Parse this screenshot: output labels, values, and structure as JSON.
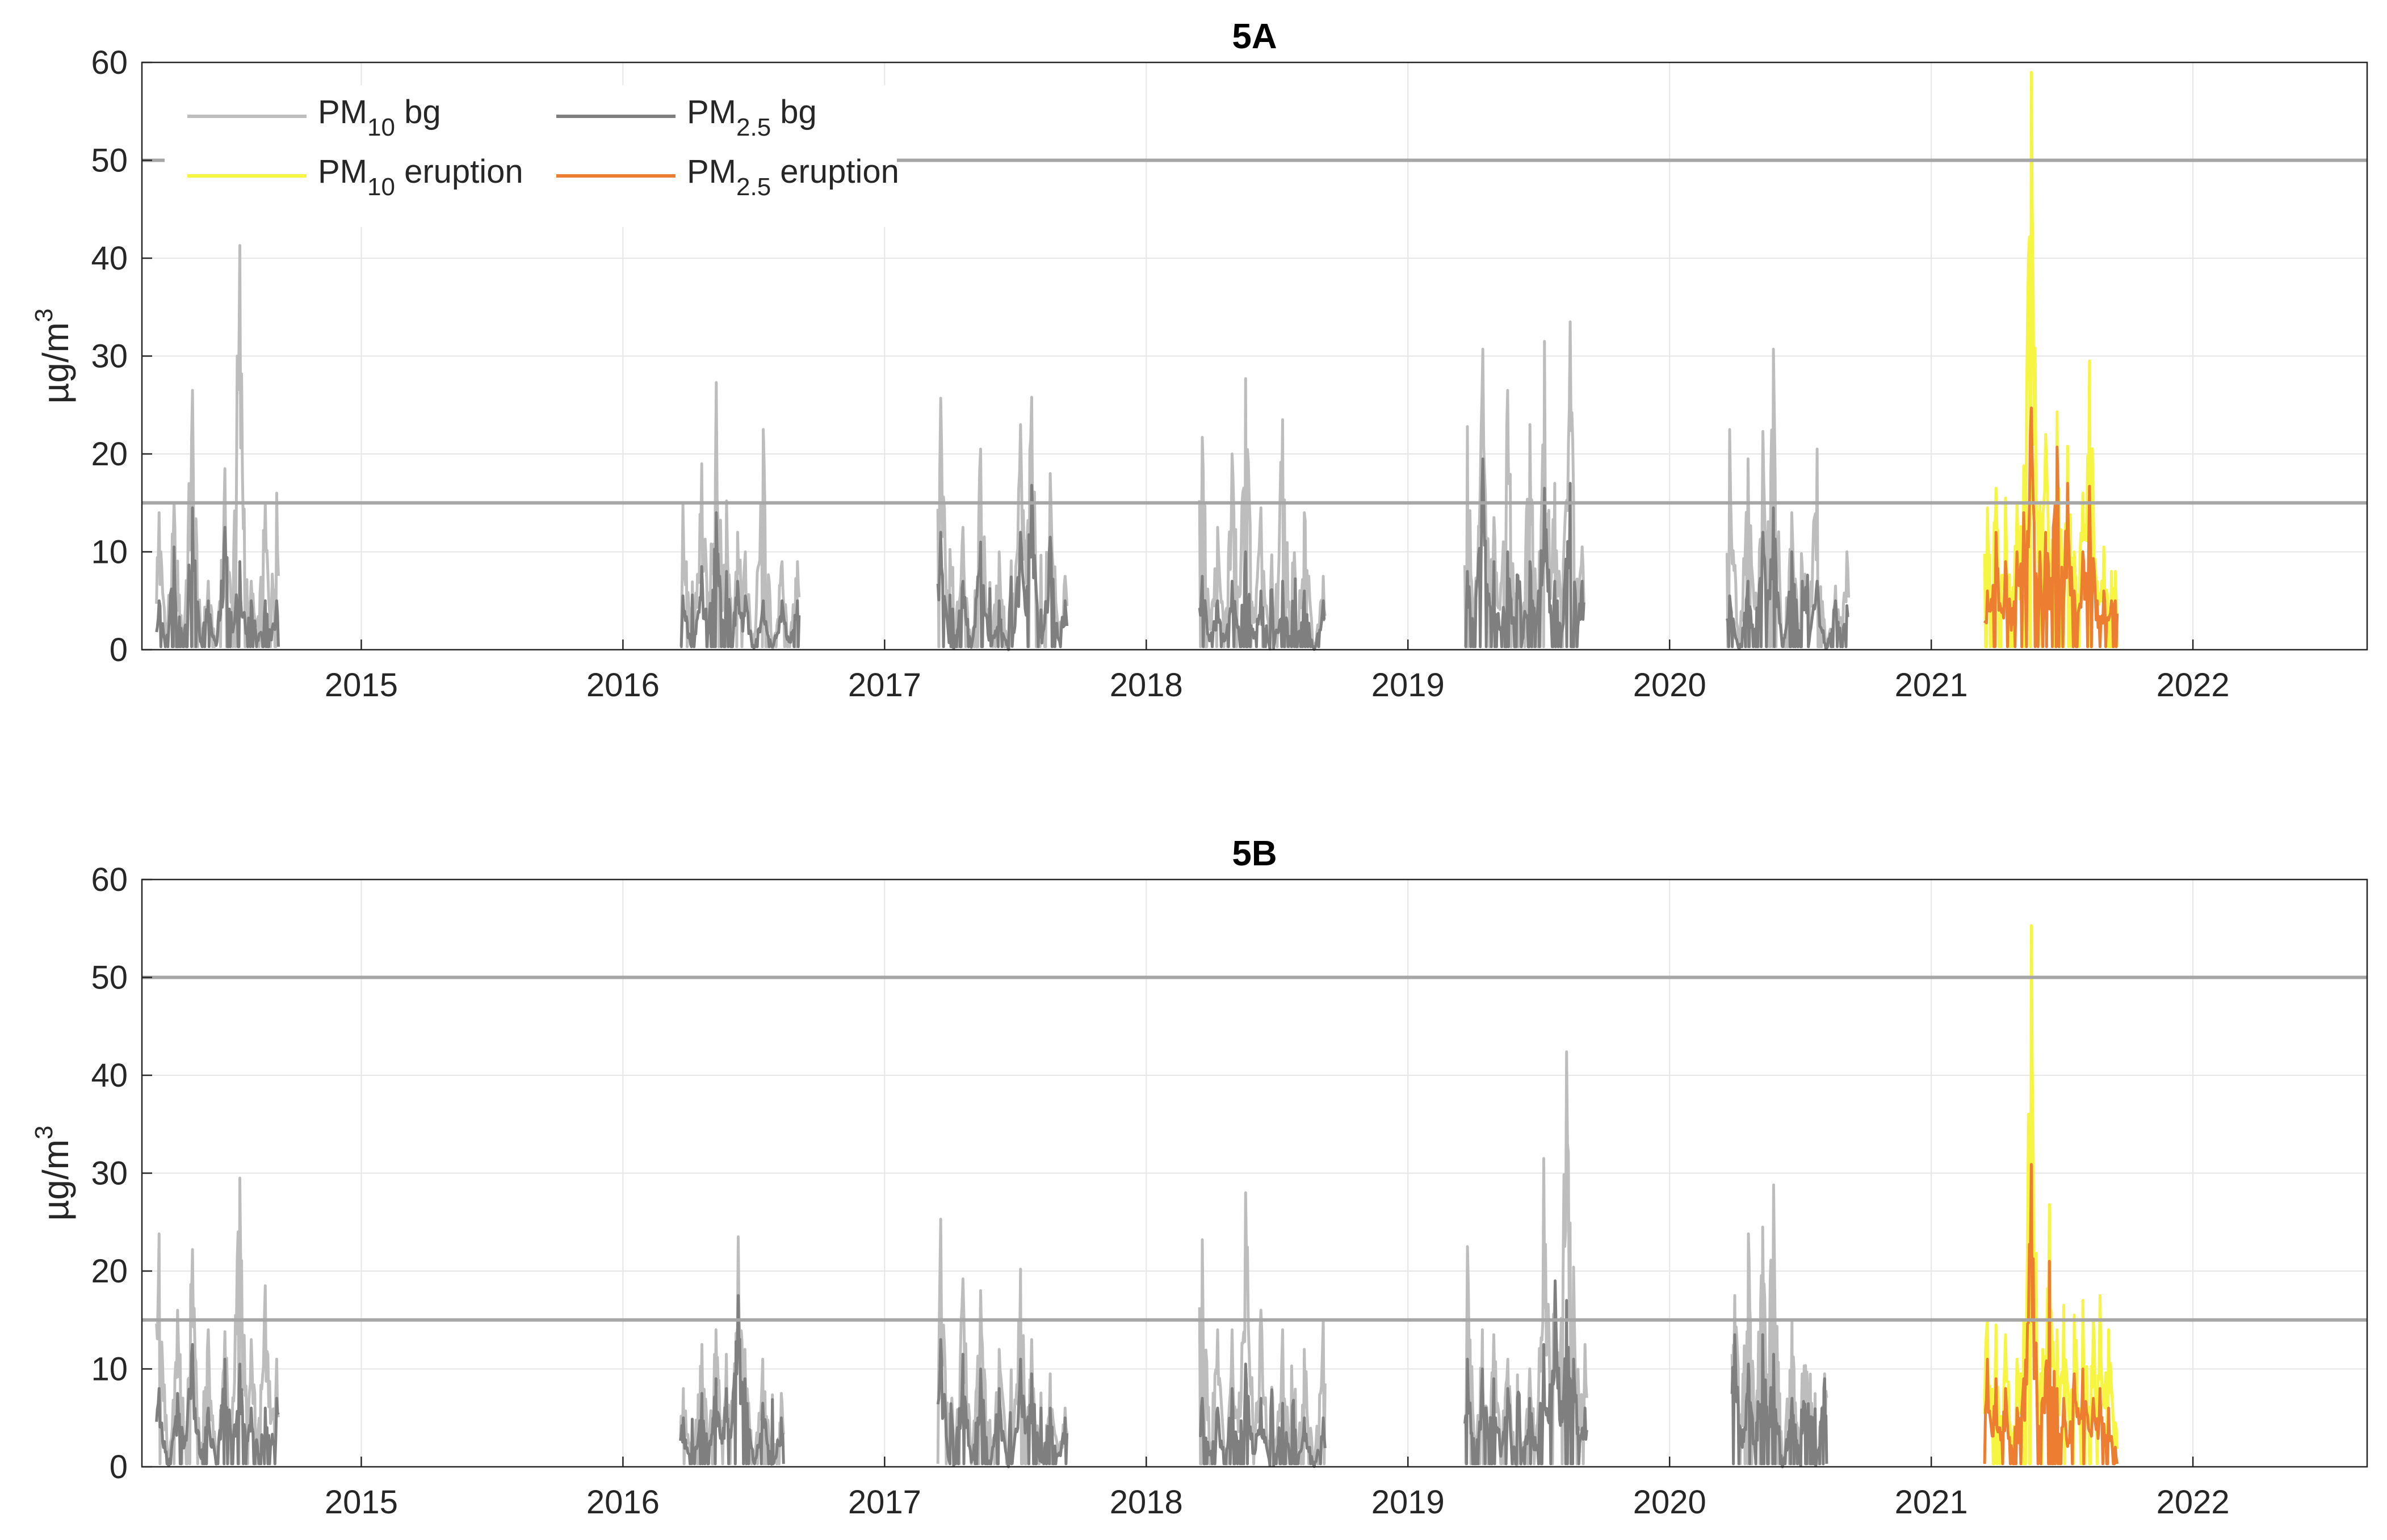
{
  "chart_data": [
    {
      "type": "line",
      "title": "5A",
      "ylabel_parts": {
        "prefix": "µg/m",
        "sup": "3"
      },
      "ylim": [
        0,
        60
      ],
      "yticks": [
        0,
        10,
        20,
        30,
        40,
        50,
        60
      ],
      "xlim": [
        "2014-03-01",
        "2022-09-01"
      ],
      "xticks": [
        "2015",
        "2016",
        "2017",
        "2018",
        "2019",
        "2020",
        "2021",
        "2022"
      ],
      "grid": true,
      "reference_lines": [
        50,
        15
      ],
      "legend": {
        "placement": "top-left",
        "entries": [
          {
            "base": "PM",
            "sub": "10",
            "rest": " bg",
            "color": "#bdbdbd"
          },
          {
            "base": "PM",
            "sub": "2.5",
            "rest": " bg",
            "color": "#7f7f7f"
          },
          {
            "base": "PM",
            "sub": "10",
            "rest": " eruption",
            "color": "#f5f542"
          },
          {
            "base": "PM",
            "sub": "2.5",
            "rest": " eruption",
            "color": "#ed7d31"
          }
        ]
      },
      "series": [
        {
          "name": "PM10 bg",
          "color": "#bdbdbd",
          "x": [
            "2014-03-25",
            "2014-04-15",
            "2014-05-10",
            "2014-06-01",
            "2014-06-25",
            "2014-07-15",
            "2014-08-01",
            "2014-08-20",
            "2014-09-05",
            "2016-03-25",
            "2016-04-20",
            "2016-05-10",
            "2016-05-25",
            "2016-06-10",
            "2016-06-20",
            "2016-07-15",
            "2016-08-10",
            "2016-09-01",
            "2017-03-20",
            "2017-04-20",
            "2017-05-15",
            "2017-06-10",
            "2017-07-10",
            "2017-07-25",
            "2017-08-20",
            "2017-09-10",
            "2018-03-20",
            "2018-04-10",
            "2018-05-01",
            "2018-05-20",
            "2018-06-10",
            "2018-07-10",
            "2018-08-10",
            "2018-09-05",
            "2019-03-25",
            "2019-04-15",
            "2019-05-01",
            "2019-05-20",
            "2019-06-20",
            "2019-07-10",
            "2019-07-25",
            "2019-08-15",
            "2019-09-01",
            "2020-03-25",
            "2020-04-20",
            "2020-05-10",
            "2020-05-25",
            "2020-06-20",
            "2020-07-25",
            "2020-08-20",
            "2020-09-05"
          ],
          "y": [
            14,
            15,
            26.5,
            7,
            18.5,
            41.3,
            7,
            15,
            16,
            14.8,
            19,
            27.3,
            15.2,
            12,
            10,
            22.5,
            9,
            9,
            25.7,
            12.5,
            20.5,
            10,
            23,
            25.8,
            18,
            7.5,
            21.7,
            12.5,
            20,
            27.7,
            14.5,
            23.5,
            14,
            7.5,
            22.8,
            30.7,
            13.5,
            26.5,
            23,
            31.5,
            17,
            33.5,
            10.5,
            22.5,
            19.5,
            22.3,
            30.7,
            14,
            20.5,
            6.5,
            10
          ]
        },
        {
          "name": "PM2.5 bg",
          "color": "#7f7f7f",
          "x": [
            "2014-03-25",
            "2014-04-15",
            "2014-05-10",
            "2014-06-01",
            "2014-06-25",
            "2014-07-15",
            "2014-08-01",
            "2014-08-20",
            "2014-09-05",
            "2016-03-25",
            "2016-04-20",
            "2016-05-10",
            "2016-05-25",
            "2016-06-10",
            "2016-06-20",
            "2016-07-15",
            "2016-08-10",
            "2016-09-01",
            "2017-03-20",
            "2017-04-20",
            "2017-05-15",
            "2017-06-10",
            "2017-07-10",
            "2017-07-25",
            "2017-08-20",
            "2017-09-10",
            "2018-03-20",
            "2018-04-10",
            "2018-05-01",
            "2018-05-20",
            "2018-06-10",
            "2018-07-10",
            "2018-08-10",
            "2018-09-05",
            "2019-03-25",
            "2019-04-15",
            "2019-05-01",
            "2019-05-20",
            "2019-06-20",
            "2019-07-10",
            "2019-07-25",
            "2019-08-15",
            "2019-09-01",
            "2020-03-25",
            "2020-04-20",
            "2020-05-10",
            "2020-05-25",
            "2020-06-20",
            "2020-07-25",
            "2020-08-20",
            "2020-09-05"
          ],
          "y": [
            5,
            10.5,
            14.5,
            5,
            12.5,
            9,
            5,
            5,
            5,
            5.5,
            8.5,
            14,
            8,
            7,
            5.5,
            5,
            5,
            5,
            12,
            7,
            11,
            5,
            12,
            16.8,
            11.5,
            5,
            7.5,
            5,
            7,
            10,
            6,
            7,
            6,
            5,
            8,
            19.5,
            9,
            10,
            9,
            16.5,
            7,
            17,
            7,
            5.5,
            7,
            12,
            14.5,
            10,
            7,
            5,
            4.5
          ]
        },
        {
          "name": "PM10 eruption",
          "color": "#f5f542",
          "x": [
            "2021-03-20",
            "2021-04-01",
            "2021-04-15",
            "2021-05-01",
            "2021-05-10",
            "2021-05-20",
            "2021-05-25",
            "2021-06-01",
            "2021-06-10",
            "2021-06-25",
            "2021-07-10",
            "2021-07-20",
            "2021-08-01",
            "2021-08-10",
            "2021-08-20",
            "2021-08-30",
            "2021-09-10",
            "2021-09-15"
          ],
          "y": [
            14.5,
            16.5,
            15.5,
            15,
            18.8,
            59,
            21,
            15,
            22,
            24.3,
            20.8,
            10,
            16,
            29.5,
            7,
            10.5,
            8,
            8
          ]
        },
        {
          "name": "PM2.5 eruption",
          "color": "#ed7d31",
          "x": [
            "2021-03-20",
            "2021-04-01",
            "2021-04-15",
            "2021-05-01",
            "2021-05-10",
            "2021-05-20",
            "2021-05-25",
            "2021-06-01",
            "2021-06-10",
            "2021-06-25",
            "2021-07-10",
            "2021-07-20",
            "2021-08-01",
            "2021-08-10",
            "2021-08-20",
            "2021-08-30",
            "2021-09-10",
            "2021-09-15"
          ],
          "y": [
            6,
            12,
            9,
            10,
            14,
            24.7,
            13,
            10,
            12,
            20.7,
            17,
            6,
            10,
            16.7,
            5,
            6,
            5,
            5
          ]
        }
      ]
    },
    {
      "type": "line",
      "title": "5B",
      "ylabel_parts": {
        "prefix": "µg/m",
        "sup": "3"
      },
      "ylim": [
        0,
        60
      ],
      "yticks": [
        0,
        10,
        20,
        30,
        40,
        50,
        60
      ],
      "xlim": [
        "2014-03-01",
        "2022-09-01"
      ],
      "xticks": [
        "2015",
        "2016",
        "2017",
        "2018",
        "2019",
        "2020",
        "2021",
        "2022"
      ],
      "grid": true,
      "reference_lines": [
        50,
        15
      ],
      "series": [
        {
          "name": "PM10 bg",
          "color": "#bdbdbd",
          "x": [
            "2014-03-25",
            "2014-04-20",
            "2014-05-10",
            "2014-06-01",
            "2014-06-25",
            "2014-07-15",
            "2014-08-01",
            "2014-08-20",
            "2014-09-05",
            "2016-03-25",
            "2016-04-20",
            "2016-05-10",
            "2016-05-25",
            "2016-06-10",
            "2016-06-20",
            "2016-07-15",
            "2016-08-10",
            "2017-03-20",
            "2017-04-20",
            "2017-05-15",
            "2017-06-10",
            "2017-07-10",
            "2017-07-25",
            "2017-08-20",
            "2017-09-10",
            "2018-03-20",
            "2018-04-10",
            "2018-05-01",
            "2018-05-20",
            "2018-06-10",
            "2018-07-10",
            "2018-08-10",
            "2018-09-05",
            "2019-03-25",
            "2019-04-15",
            "2019-05-01",
            "2019-05-20",
            "2019-06-20",
            "2019-07-10",
            "2019-07-25",
            "2019-08-10",
            "2019-08-20",
            "2019-09-05",
            "2020-04-01",
            "2020-04-20",
            "2020-05-10",
            "2020-05-25",
            "2020-06-20",
            "2020-08-05"
          ],
          "y": [
            23.8,
            16,
            22.2,
            14,
            13.8,
            29.5,
            13,
            18.5,
            11,
            8,
            12.5,
            14,
            11.5,
            23.5,
            12,
            11,
            7.5,
            25.3,
            19.2,
            18,
            12,
            20.2,
            13,
            9.5,
            6,
            23.2,
            14,
            14,
            28,
            16,
            14,
            12,
            15,
            22.5,
            14,
            13.5,
            11,
            10,
            31.5,
            19,
            42.4,
            20.4,
            12.5,
            17.5,
            23.8,
            24.5,
            28.8,
            15,
            9.5
          ]
        },
        {
          "name": "PM2.5 bg",
          "color": "#7f7f7f",
          "x": [
            "2014-03-25",
            "2014-04-20",
            "2014-05-10",
            "2014-06-01",
            "2014-06-25",
            "2014-07-15",
            "2014-08-01",
            "2014-08-20",
            "2014-09-05",
            "2016-03-25",
            "2016-04-20",
            "2016-05-10",
            "2016-05-25",
            "2016-06-10",
            "2016-06-20",
            "2016-07-15",
            "2016-08-10",
            "2017-03-20",
            "2017-04-20",
            "2017-05-15",
            "2017-06-10",
            "2017-07-10",
            "2017-07-25",
            "2017-08-20",
            "2017-09-10",
            "2018-03-20",
            "2018-04-10",
            "2018-05-01",
            "2018-05-20",
            "2018-06-10",
            "2018-07-10",
            "2018-08-10",
            "2018-09-05",
            "2019-03-25",
            "2019-04-15",
            "2019-05-01",
            "2019-05-20",
            "2019-06-20",
            "2019-07-10",
            "2019-07-25",
            "2019-08-10",
            "2019-08-20",
            "2019-09-05",
            "2020-04-01",
            "2020-04-20",
            "2020-05-10",
            "2020-05-25",
            "2020-06-20",
            "2020-08-05"
          ],
          "y": [
            8,
            7.5,
            12.5,
            6,
            11,
            10.5,
            6,
            6,
            7,
            5,
            7.5,
            9,
            8,
            17.5,
            9,
            6.5,
            5,
            13,
            11.5,
            10,
            8,
            11,
            9.5,
            6,
            5,
            7,
            6,
            8,
            10.5,
            7,
            6.5,
            5,
            5,
            11,
            10,
            9,
            8,
            7,
            12.5,
            19,
            17,
            11,
            6,
            13.5,
            10.5,
            13.5,
            11.5,
            7,
            9
          ]
        },
        {
          "name": "PM10 eruption",
          "color": "#f5f542",
          "x": [
            "2021-03-20",
            "2021-04-01",
            "2021-04-15",
            "2021-05-01",
            "2021-05-10",
            "2021-05-20",
            "2021-05-25",
            "2021-06-05",
            "2021-06-15",
            "2021-06-25",
            "2021-07-05",
            "2021-07-20",
            "2021-08-01",
            "2021-08-15",
            "2021-08-25",
            "2021-09-05",
            "2021-09-15"
          ],
          "y": [
            15,
            14.5,
            13.5,
            11,
            15,
            55.3,
            15,
            12,
            26.8,
            14,
            16.5,
            15.5,
            17,
            15,
            17.5,
            14,
            4.5
          ]
        },
        {
          "name": "PM2.5 eruption",
          "color": "#ed7d31",
          "x": [
            "2021-03-20",
            "2021-04-01",
            "2021-04-15",
            "2021-05-01",
            "2021-05-10",
            "2021-05-20",
            "2021-05-25",
            "2021-06-05",
            "2021-06-15",
            "2021-06-25",
            "2021-07-05",
            "2021-07-20",
            "2021-08-01",
            "2021-08-15",
            "2021-08-25",
            "2021-09-05",
            "2021-09-15"
          ],
          "y": [
            11,
            9,
            8,
            6,
            9,
            30.9,
            9,
            7,
            21,
            8,
            7,
            9.5,
            10,
            7,
            8,
            6,
            2
          ]
        }
      ]
    }
  ]
}
